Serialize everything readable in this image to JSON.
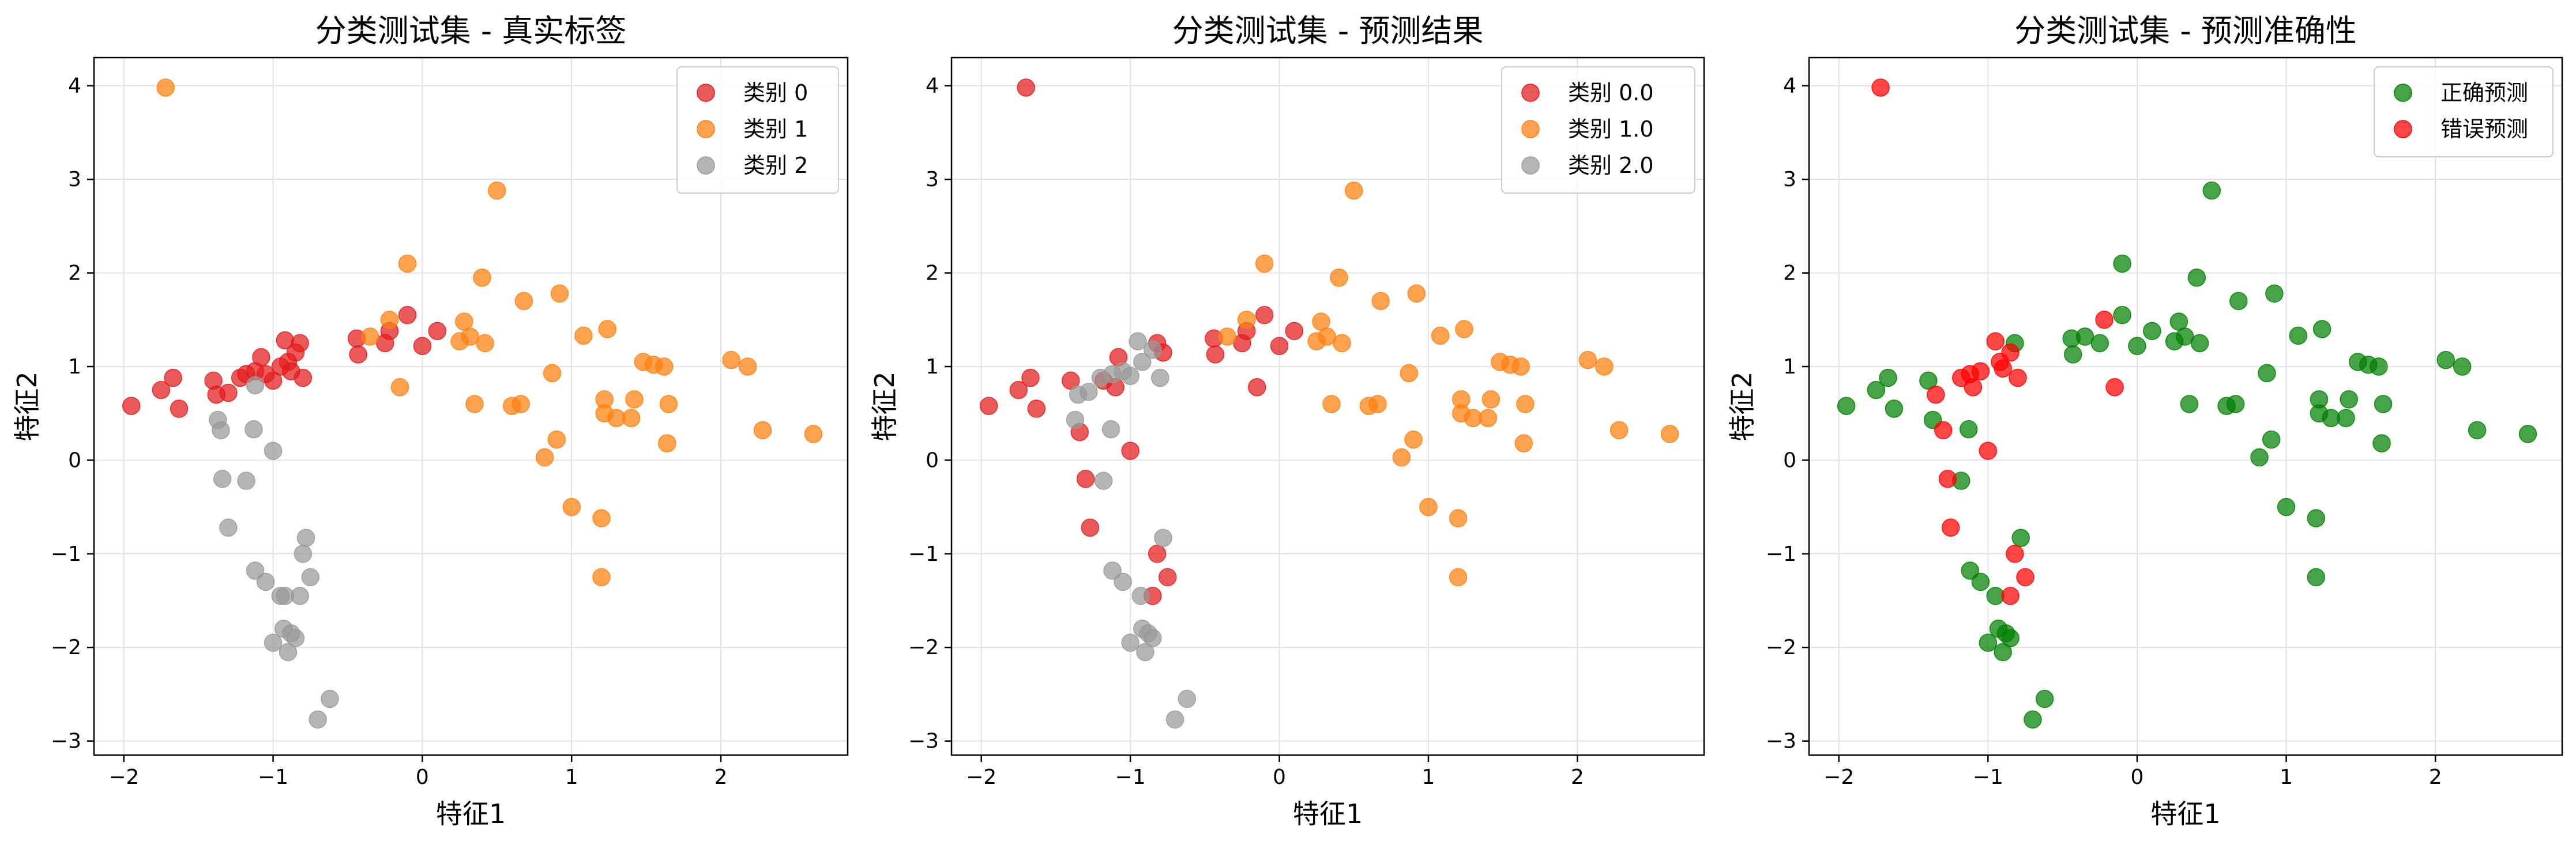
{
  "chart_data": [
    {
      "type": "scatter",
      "title": "分类测试集 - 真实标签",
      "xlabel": "特征1",
      "ylabel": "特征2",
      "xlim": [
        -2.2,
        2.85
      ],
      "ylim": [
        -3.15,
        4.3
      ],
      "xticks": [
        -2,
        -1,
        0,
        1,
        2
      ],
      "yticks": [
        -3,
        -2,
        -1,
        0,
        1,
        2,
        3,
        4
      ],
      "grid": true,
      "legend_position": "top-right",
      "series": [
        {
          "name": "类别 0",
          "color": "#e31a1c",
          "points": [
            [
              -1.95,
              0.58
            ],
            [
              -1.75,
              0.75
            ],
            [
              -1.67,
              0.88
            ],
            [
              -1.63,
              0.55
            ],
            [
              -1.4,
              0.85
            ],
            [
              -1.38,
              0.7
            ],
            [
              -1.3,
              0.72
            ],
            [
              -1.22,
              0.88
            ],
            [
              -1.18,
              0.92
            ],
            [
              -1.12,
              0.95
            ],
            [
              -1.08,
              1.1
            ],
            [
              -1.05,
              0.92
            ],
            [
              -1.0,
              0.85
            ],
            [
              -0.95,
              1.0
            ],
            [
              -0.92,
              1.28
            ],
            [
              -0.9,
              1.05
            ],
            [
              -0.88,
              0.95
            ],
            [
              -0.85,
              1.15
            ],
            [
              -0.82,
              1.25
            ],
            [
              -0.8,
              0.88
            ],
            [
              -0.44,
              1.3
            ],
            [
              -0.43,
              1.13
            ],
            [
              -0.25,
              1.25
            ],
            [
              -0.22,
              1.38
            ],
            [
              -0.1,
              1.55
            ],
            [
              0.0,
              1.22
            ],
            [
              0.1,
              1.38
            ]
          ]
        },
        {
          "name": "类别 1",
          "color": "#ff7f0e",
          "points": [
            [
              -1.72,
              3.98
            ],
            [
              -0.35,
              1.32
            ],
            [
              -0.22,
              1.5
            ],
            [
              -0.15,
              0.78
            ],
            [
              -0.1,
              2.1
            ],
            [
              0.25,
              1.27
            ],
            [
              0.28,
              1.48
            ],
            [
              0.32,
              1.32
            ],
            [
              0.35,
              0.6
            ],
            [
              0.4,
              1.95
            ],
            [
              0.42,
              1.25
            ],
            [
              0.5,
              2.88
            ],
            [
              0.6,
              0.58
            ],
            [
              0.66,
              0.6
            ],
            [
              0.68,
              1.7
            ],
            [
              0.82,
              0.03
            ],
            [
              0.87,
              0.93
            ],
            [
              0.9,
              0.22
            ],
            [
              0.92,
              1.78
            ],
            [
              1.0,
              -0.5
            ],
            [
              1.08,
              1.33
            ],
            [
              1.2,
              -1.25
            ],
            [
              1.2,
              -0.62
            ],
            [
              1.22,
              0.65
            ],
            [
              1.22,
              0.5
            ],
            [
              1.24,
              1.4
            ],
            [
              1.3,
              0.45
            ],
            [
              1.4,
              0.45
            ],
            [
              1.42,
              0.65
            ],
            [
              1.48,
              1.05
            ],
            [
              1.55,
              1.02
            ],
            [
              1.62,
              1.0
            ],
            [
              1.64,
              0.18
            ],
            [
              1.65,
              0.6
            ],
            [
              2.07,
              1.07
            ],
            [
              2.18,
              1.0
            ],
            [
              2.28,
              0.32
            ],
            [
              2.62,
              0.28
            ]
          ]
        },
        {
          "name": "类别 2",
          "color": "#999999",
          "points": [
            [
              -1.37,
              0.43
            ],
            [
              -1.35,
              0.32
            ],
            [
              -1.34,
              -0.2
            ],
            [
              -1.3,
              -0.72
            ],
            [
              -1.18,
              -0.22
            ],
            [
              -1.13,
              0.33
            ],
            [
              -1.12,
              0.8
            ],
            [
              -1.12,
              -1.18
            ],
            [
              -1.05,
              -1.3
            ],
            [
              -1.0,
              0.1
            ],
            [
              -1.0,
              -1.95
            ],
            [
              -0.95,
              -1.45
            ],
            [
              -0.93,
              -1.8
            ],
            [
              -0.92,
              -1.45
            ],
            [
              -0.9,
              -2.05
            ],
            [
              -0.88,
              -1.85
            ],
            [
              -0.85,
              -1.9
            ],
            [
              -0.82,
              -1.45
            ],
            [
              -0.8,
              -1.0
            ],
            [
              -0.78,
              -0.83
            ],
            [
              -0.75,
              -1.25
            ],
            [
              -0.7,
              -2.77
            ],
            [
              -0.62,
              -2.55
            ]
          ]
        }
      ]
    },
    {
      "type": "scatter",
      "title": "分类测试集 - 预测结果",
      "xlabel": "特征1",
      "ylabel": "特征2",
      "xlim": [
        -2.2,
        2.85
      ],
      "ylim": [
        -3.15,
        4.3
      ],
      "xticks": [
        -2,
        -1,
        0,
        1,
        2
      ],
      "yticks": [
        -3,
        -2,
        -1,
        0,
        1,
        2,
        3,
        4
      ],
      "grid": true,
      "legend_position": "top-right",
      "series": [
        {
          "name": "类别 0.0",
          "color": "#e31a1c",
          "points": [
            [
              -1.95,
              0.58
            ],
            [
              -1.75,
              0.75
            ],
            [
              -1.7,
              3.98
            ],
            [
              -1.67,
              0.88
            ],
            [
              -1.63,
              0.55
            ],
            [
              -1.4,
              0.85
            ],
            [
              -1.34,
              0.3
            ],
            [
              -1.3,
              -0.2
            ],
            [
              -1.27,
              -0.72
            ],
            [
              -1.18,
              0.85
            ],
            [
              -1.1,
              0.78
            ],
            [
              -1.08,
              1.1
            ],
            [
              -1.0,
              0.1
            ],
            [
              -0.85,
              -1.45
            ],
            [
              -0.82,
              -1.0
            ],
            [
              -0.82,
              1.25
            ],
            [
              -0.78,
              1.15
            ],
            [
              -0.75,
              -1.25
            ],
            [
              -0.44,
              1.3
            ],
            [
              -0.43,
              1.13
            ],
            [
              -0.25,
              1.25
            ],
            [
              -0.22,
              1.38
            ],
            [
              -0.15,
              0.78
            ],
            [
              -0.1,
              1.55
            ],
            [
              0.0,
              1.22
            ],
            [
              0.1,
              1.38
            ]
          ]
        },
        {
          "name": "类别 1.0",
          "color": "#ff7f0e",
          "points": [
            [
              -0.35,
              1.32
            ],
            [
              -0.22,
              1.5
            ],
            [
              -0.1,
              2.1
            ],
            [
              0.25,
              1.27
            ],
            [
              0.28,
              1.48
            ],
            [
              0.32,
              1.32
            ],
            [
              0.35,
              0.6
            ],
            [
              0.4,
              1.95
            ],
            [
              0.42,
              1.25
            ],
            [
              0.5,
              2.88
            ],
            [
              0.6,
              0.58
            ],
            [
              0.66,
              0.6
            ],
            [
              0.68,
              1.7
            ],
            [
              0.82,
              0.03
            ],
            [
              0.87,
              0.93
            ],
            [
              0.9,
              0.22
            ],
            [
              0.92,
              1.78
            ],
            [
              1.0,
              -0.5
            ],
            [
              1.08,
              1.33
            ],
            [
              1.2,
              -1.25
            ],
            [
              1.2,
              -0.62
            ],
            [
              1.22,
              0.65
            ],
            [
              1.22,
              0.5
            ],
            [
              1.24,
              1.4
            ],
            [
              1.3,
              0.45
            ],
            [
              1.4,
              0.45
            ],
            [
              1.42,
              0.65
            ],
            [
              1.48,
              1.05
            ],
            [
              1.55,
              1.02
            ],
            [
              1.62,
              1.0
            ],
            [
              1.64,
              0.18
            ],
            [
              1.65,
              0.6
            ],
            [
              2.07,
              1.07
            ],
            [
              2.18,
              1.0
            ],
            [
              2.28,
              0.32
            ],
            [
              2.62,
              0.28
            ]
          ]
        },
        {
          "name": "类别 2.0",
          "color": "#999999",
          "points": [
            [
              -1.37,
              0.43
            ],
            [
              -1.35,
              0.7
            ],
            [
              -1.28,
              0.73
            ],
            [
              -1.2,
              0.88
            ],
            [
              -1.18,
              -0.22
            ],
            [
              -1.13,
              0.33
            ],
            [
              -1.12,
              0.92
            ],
            [
              -1.12,
              -1.18
            ],
            [
              -1.05,
              -1.3
            ],
            [
              -1.05,
              0.95
            ],
            [
              -1.0,
              0.9
            ],
            [
              -1.0,
              -1.95
            ],
            [
              -0.95,
              1.27
            ],
            [
              -0.93,
              -1.45
            ],
            [
              -0.92,
              1.05
            ],
            [
              -0.92,
              -1.8
            ],
            [
              -0.9,
              -2.05
            ],
            [
              -0.88,
              -1.85
            ],
            [
              -0.85,
              1.18
            ],
            [
              -0.85,
              -1.9
            ],
            [
              -0.8,
              0.88
            ],
            [
              -0.78,
              -0.83
            ],
            [
              -0.7,
              -2.77
            ],
            [
              -0.62,
              -2.55
            ]
          ]
        }
      ]
    },
    {
      "type": "scatter",
      "title": "分类测试集 - 预测准确性",
      "xlabel": "特征1",
      "ylabel": "特征2",
      "xlim": [
        -2.2,
        2.85
      ],
      "ylim": [
        -3.15,
        4.3
      ],
      "xticks": [
        -2,
        -1,
        0,
        1,
        2
      ],
      "yticks": [
        -3,
        -2,
        -1,
        0,
        1,
        2,
        3,
        4
      ],
      "grid": true,
      "legend_position": "top-right",
      "series": [
        {
          "name": "正确预测",
          "color": "#008000",
          "points": [
            [
              -1.95,
              0.58
            ],
            [
              -1.75,
              0.75
            ],
            [
              -1.67,
              0.88
            ],
            [
              -1.63,
              0.55
            ],
            [
              -1.4,
              0.85
            ],
            [
              -1.37,
              0.43
            ],
            [
              -1.18,
              -0.22
            ],
            [
              -1.13,
              0.33
            ],
            [
              -1.12,
              -1.18
            ],
            [
              -1.05,
              -1.3
            ],
            [
              -1.0,
              -1.95
            ],
            [
              -0.95,
              -1.45
            ],
            [
              -0.93,
              -1.8
            ],
            [
              -0.9,
              -2.05
            ],
            [
              -0.88,
              -1.85
            ],
            [
              -0.85,
              -1.9
            ],
            [
              -0.82,
              1.25
            ],
            [
              -0.78,
              -0.83
            ],
            [
              -0.7,
              -2.77
            ],
            [
              -0.62,
              -2.55
            ],
            [
              -0.44,
              1.3
            ],
            [
              -0.43,
              1.13
            ],
            [
              -0.35,
              1.32
            ],
            [
              -0.25,
              1.25
            ],
            [
              -0.1,
              1.55
            ],
            [
              -0.1,
              2.1
            ],
            [
              0.0,
              1.22
            ],
            [
              0.1,
              1.38
            ],
            [
              0.25,
              1.27
            ],
            [
              0.28,
              1.48
            ],
            [
              0.32,
              1.32
            ],
            [
              0.35,
              0.6
            ],
            [
              0.4,
              1.95
            ],
            [
              0.42,
              1.25
            ],
            [
              0.5,
              2.88
            ],
            [
              0.6,
              0.58
            ],
            [
              0.66,
              0.6
            ],
            [
              0.68,
              1.7
            ],
            [
              0.82,
              0.03
            ],
            [
              0.87,
              0.93
            ],
            [
              0.9,
              0.22
            ],
            [
              0.92,
              1.78
            ],
            [
              1.0,
              -0.5
            ],
            [
              1.08,
              1.33
            ],
            [
              1.2,
              -1.25
            ],
            [
              1.2,
              -0.62
            ],
            [
              1.22,
              0.65
            ],
            [
              1.22,
              0.5
            ],
            [
              1.24,
              1.4
            ],
            [
              1.3,
              0.45
            ],
            [
              1.4,
              0.45
            ],
            [
              1.42,
              0.65
            ],
            [
              1.48,
              1.05
            ],
            [
              1.55,
              1.02
            ],
            [
              1.62,
              1.0
            ],
            [
              1.64,
              0.18
            ],
            [
              1.65,
              0.6
            ],
            [
              2.07,
              1.07
            ],
            [
              2.18,
              1.0
            ],
            [
              2.28,
              0.32
            ],
            [
              2.62,
              0.28
            ]
          ]
        },
        {
          "name": "错误预测",
          "color": "#ff0000",
          "points": [
            [
              -1.72,
              3.98
            ],
            [
              -1.35,
              0.7
            ],
            [
              -1.3,
              0.32
            ],
            [
              -1.27,
              -0.2
            ],
            [
              -1.25,
              -0.72
            ],
            [
              -1.18,
              0.88
            ],
            [
              -1.12,
              0.92
            ],
            [
              -1.1,
              0.78
            ],
            [
              -1.05,
              0.95
            ],
            [
              -1.0,
              0.1
            ],
            [
              -0.95,
              1.27
            ],
            [
              -0.92,
              1.05
            ],
            [
              -0.9,
              0.98
            ],
            [
              -0.85,
              1.15
            ],
            [
              -0.85,
              -1.45
            ],
            [
              -0.82,
              -1.0
            ],
            [
              -0.8,
              0.88
            ],
            [
              -0.75,
              -1.25
            ],
            [
              -0.22,
              1.5
            ],
            [
              -0.15,
              0.78
            ]
          ]
        }
      ]
    }
  ]
}
